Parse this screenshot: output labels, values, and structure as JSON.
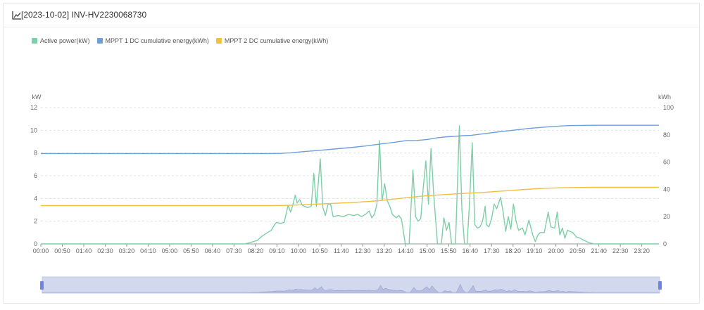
{
  "header": {
    "title": "[2023-10-02] INV-HV2230068730",
    "icon": "line-chart-icon"
  },
  "chart_data": {
    "type": "line",
    "x": [
      "00:00",
      "00:50",
      "01:40",
      "02:30",
      "03:20",
      "04:10",
      "05:00",
      "05:50",
      "06:40",
      "07:30",
      "08:20",
      "09:10",
      "10:00",
      "10:50",
      "11:40",
      "12:30",
      "13:20",
      "14:10",
      "15:00",
      "15:50",
      "16:40",
      "17:30",
      "18:20",
      "19:10",
      "20:00",
      "20:50",
      "21:40",
      "22:30",
      "23:20"
    ],
    "left_axis": {
      "unit": "kW",
      "min": 0,
      "max": 12,
      "ticks": [
        0,
        2,
        4,
        6,
        8,
        10,
        12
      ]
    },
    "right_axis": {
      "unit": "kWh",
      "min": 0,
      "max": 100,
      "ticks": [
        0,
        20,
        40,
        60,
        80,
        100
      ]
    },
    "grid": "horizontal dashed",
    "legend_position": "top-left",
    "series": [
      {
        "name": "Active power(kW)",
        "color": "#7dcfa6",
        "axis": "left",
        "points": [
          [
            0,
            0
          ],
          [
            7.9,
            0
          ],
          [
            8.1,
            0.1
          ],
          [
            8.4,
            0.3
          ],
          [
            8.6,
            0.7
          ],
          [
            8.8,
            1.0
          ],
          [
            8.95,
            1.2
          ],
          [
            9.05,
            1.6
          ],
          [
            9.15,
            1.9
          ],
          [
            9.3,
            1.8
          ],
          [
            9.45,
            1.9
          ],
          [
            9.6,
            3.4
          ],
          [
            9.7,
            2.8
          ],
          [
            9.78,
            3.4
          ],
          [
            9.88,
            4.3
          ],
          [
            9.95,
            3.6
          ],
          [
            10.05,
            3.9
          ],
          [
            10.15,
            3.4
          ],
          [
            10.25,
            3.3
          ],
          [
            10.35,
            3.2
          ],
          [
            10.5,
            3.3
          ],
          [
            10.6,
            6.2
          ],
          [
            10.7,
            3.3
          ],
          [
            10.85,
            7.5
          ],
          [
            10.95,
            3.2
          ],
          [
            11.05,
            2.5
          ],
          [
            11.15,
            3.5
          ],
          [
            11.25,
            3.5
          ],
          [
            11.35,
            2.4
          ],
          [
            11.55,
            2.5
          ],
          [
            11.75,
            2.4
          ],
          [
            11.95,
            2.6
          ],
          [
            12.15,
            2.5
          ],
          [
            12.3,
            2.6
          ],
          [
            12.45,
            2.4
          ],
          [
            12.6,
            2.6
          ],
          [
            12.75,
            2.9
          ],
          [
            12.85,
            2.3
          ],
          [
            12.95,
            2.6
          ],
          [
            13.05,
            3.5
          ],
          [
            13.15,
            9.1
          ],
          [
            13.25,
            3.8
          ],
          [
            13.35,
            5.3
          ],
          [
            13.45,
            3.8
          ],
          [
            13.55,
            3.3
          ],
          [
            13.65,
            2.6
          ],
          [
            13.8,
            2.3
          ],
          [
            13.9,
            2.5
          ],
          [
            14.0,
            2.2
          ],
          [
            14.15,
            0
          ],
          [
            14.3,
            0
          ],
          [
            14.45,
            6.5
          ],
          [
            14.55,
            2.4
          ],
          [
            14.65,
            2.0
          ],
          [
            14.75,
            2.2
          ],
          [
            14.85,
            5.0
          ],
          [
            14.95,
            7.3
          ],
          [
            15.05,
            3.5
          ],
          [
            15.15,
            8.4
          ],
          [
            15.25,
            4.5
          ],
          [
            15.4,
            0
          ],
          [
            15.55,
            0
          ],
          [
            15.65,
            2.3
          ],
          [
            15.75,
            1.2
          ],
          [
            15.85,
            1.9
          ],
          [
            15.95,
            0
          ],
          [
            16.1,
            0
          ],
          [
            16.25,
            10.4
          ],
          [
            16.35,
            3.0
          ],
          [
            16.45,
            0
          ],
          [
            16.55,
            0
          ],
          [
            16.65,
            3.8
          ],
          [
            16.75,
            8.9
          ],
          [
            16.85,
            1.7
          ],
          [
            16.95,
            1.4
          ],
          [
            17.05,
            1.5
          ],
          [
            17.15,
            2.0
          ],
          [
            17.25,
            3.3
          ],
          [
            17.3,
            1.7
          ],
          [
            17.4,
            1.5
          ],
          [
            17.5,
            2.2
          ],
          [
            17.6,
            3.5
          ],
          [
            17.7,
            3.1
          ],
          [
            17.85,
            4.1
          ],
          [
            17.95,
            2.8
          ],
          [
            18.05,
            1.1
          ],
          [
            18.15,
            2.4
          ],
          [
            18.25,
            1.3
          ],
          [
            18.35,
            3.5
          ],
          [
            18.45,
            2.0
          ],
          [
            18.55,
            1.2
          ],
          [
            18.7,
            1.4
          ],
          [
            18.8,
            0.8
          ],
          [
            18.95,
            2.1
          ],
          [
            19.1,
            0.8
          ],
          [
            19.2,
            0.2
          ],
          [
            19.3,
            0.8
          ],
          [
            19.4,
            1.0
          ],
          [
            19.55,
            1.0
          ],
          [
            19.7,
            2.8
          ],
          [
            19.8,
            1.5
          ],
          [
            19.95,
            1.4
          ],
          [
            20.05,
            2.8
          ],
          [
            20.15,
            0.8
          ],
          [
            20.25,
            1.4
          ],
          [
            20.35,
            0.5
          ],
          [
            20.45,
            1.2
          ],
          [
            20.55,
            1.1
          ],
          [
            20.65,
            1.0
          ],
          [
            20.8,
            0.6
          ],
          [
            20.95,
            0.5
          ],
          [
            21.1,
            0.3
          ],
          [
            21.3,
            0.1
          ],
          [
            21.5,
            0
          ],
          [
            24,
            0
          ]
        ]
      },
      {
        "name": "MPPT 1 DC cumulative energy(kWh)",
        "color": "#6e9fdd",
        "axis": "right",
        "points": [
          [
            0,
            66.3
          ],
          [
            8.9,
            66.3
          ],
          [
            9.3,
            66.4
          ],
          [
            9.7,
            66.8
          ],
          [
            10.2,
            67.7
          ],
          [
            10.8,
            68.6
          ],
          [
            11.4,
            69.6
          ],
          [
            12.0,
            70.6
          ],
          [
            12.6,
            71.8
          ],
          [
            13.2,
            73.3
          ],
          [
            13.8,
            74.7
          ],
          [
            14.2,
            75.8
          ],
          [
            14.6,
            75.9
          ],
          [
            15.0,
            76.6
          ],
          [
            15.4,
            77.9
          ],
          [
            15.8,
            78.6
          ],
          [
            16.1,
            78.9
          ],
          [
            16.4,
            79.4
          ],
          [
            16.7,
            79.6
          ],
          [
            17.0,
            80.3
          ],
          [
            17.4,
            81.3
          ],
          [
            17.8,
            82.2
          ],
          [
            18.2,
            83.1
          ],
          [
            18.6,
            83.9
          ],
          [
            19.0,
            84.8
          ],
          [
            19.4,
            85.4
          ],
          [
            19.8,
            86.0
          ],
          [
            20.2,
            86.5
          ],
          [
            20.6,
            86.8
          ],
          [
            21.0,
            86.9
          ],
          [
            21.5,
            87.0
          ],
          [
            24,
            87.0
          ]
        ]
      },
      {
        "name": "MPPT 2 DC cumulative energy(kWh)",
        "color": "#f0c040",
        "axis": "right",
        "points": [
          [
            0,
            28.1
          ],
          [
            8.9,
            28.1
          ],
          [
            9.4,
            28.2
          ],
          [
            9.9,
            28.5
          ],
          [
            10.5,
            29.0
          ],
          [
            11.2,
            29.6
          ],
          [
            12.0,
            30.3
          ],
          [
            12.8,
            31.2
          ],
          [
            13.5,
            32.4
          ],
          [
            14.2,
            33.9
          ],
          [
            14.8,
            35.0
          ],
          [
            15.4,
            35.9
          ],
          [
            16.1,
            36.7
          ],
          [
            16.6,
            37.2
          ],
          [
            17.2,
            37.8
          ],
          [
            17.8,
            38.6
          ],
          [
            18.4,
            39.4
          ],
          [
            19.0,
            40.2
          ],
          [
            19.6,
            40.8
          ],
          [
            20.2,
            41.2
          ],
          [
            20.8,
            41.4
          ],
          [
            21.5,
            41.5
          ],
          [
            24,
            41.5
          ]
        ]
      }
    ]
  }
}
